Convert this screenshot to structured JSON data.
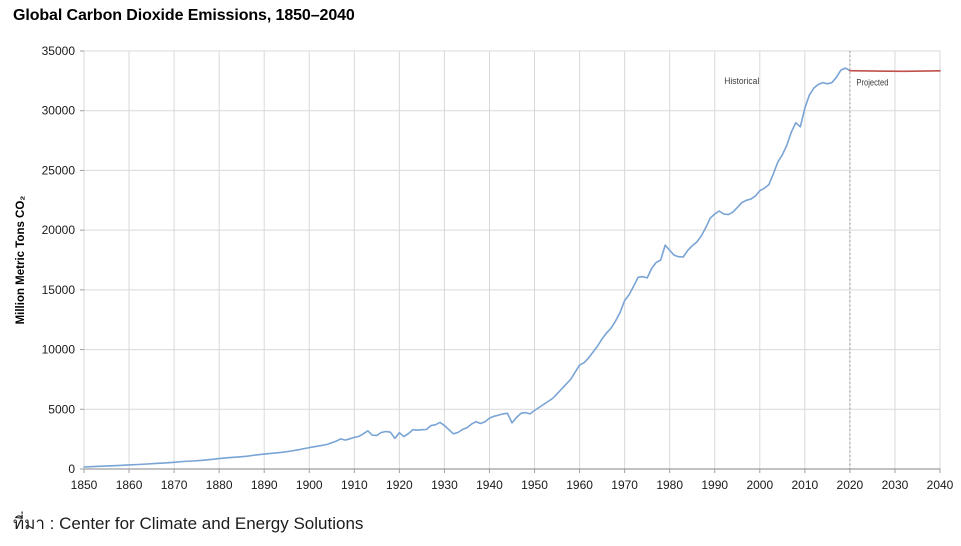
{
  "title": "Global Carbon Dioxide Emissions, 1850–2040",
  "source_note": "ที่มา : Center for Climate and Energy Solutions",
  "colors": {
    "historical_line": "#79a4d5",
    "projected_line": "#c0504d",
    "grid": "#d9d9d9",
    "axis": "#9e9e9e",
    "divider": "#8f8f8f",
    "tick_text": "#1a1a1a",
    "annotation_text": "#3c3c3c"
  },
  "chart_data": {
    "type": "line",
    "title": "Global Carbon Dioxide Emissions, 1850–2040",
    "xlabel": "",
    "ylabel": "Million Metric Tons CO₂",
    "xlim": [
      1850,
      2040
    ],
    "ylim": [
      0,
      35000
    ],
    "grid": true,
    "legend_position": "none",
    "x_ticks": [
      1850,
      1860,
      1870,
      1880,
      1890,
      1900,
      1910,
      1920,
      1930,
      1940,
      1950,
      1960,
      1970,
      1980,
      1990,
      2000,
      2010,
      2020,
      2030,
      2040
    ],
    "y_ticks": [
      0,
      5000,
      10000,
      15000,
      20000,
      25000,
      30000,
      35000
    ],
    "divider": {
      "x": 2020,
      "style": "dotted"
    },
    "annotations": [
      {
        "text": "Historical",
        "x": 1996,
        "y": 32500
      },
      {
        "text": "Projected",
        "x": 2025,
        "y": 32350
      }
    ],
    "series": [
      {
        "name": "Historical",
        "color": "#79a4d5",
        "points": [
          [
            1850,
            170
          ],
          [
            1852,
            200
          ],
          [
            1854,
            235
          ],
          [
            1856,
            270
          ],
          [
            1858,
            300
          ],
          [
            1860,
            340
          ],
          [
            1862,
            380
          ],
          [
            1864,
            420
          ],
          [
            1866,
            465
          ],
          [
            1868,
            510
          ],
          [
            1870,
            560
          ],
          [
            1872,
            630
          ],
          [
            1874,
            670
          ],
          [
            1876,
            720
          ],
          [
            1878,
            790
          ],
          [
            1880,
            870
          ],
          [
            1882,
            950
          ],
          [
            1884,
            1000
          ],
          [
            1886,
            1060
          ],
          [
            1888,
            1160
          ],
          [
            1890,
            1250
          ],
          [
            1892,
            1320
          ],
          [
            1894,
            1400
          ],
          [
            1896,
            1510
          ],
          [
            1898,
            1640
          ],
          [
            1900,
            1790
          ],
          [
            1902,
            1920
          ],
          [
            1904,
            2060
          ],
          [
            1906,
            2340
          ],
          [
            1907,
            2520
          ],
          [
            1908,
            2420
          ],
          [
            1909,
            2530
          ],
          [
            1910,
            2650
          ],
          [
            1911,
            2730
          ],
          [
            1912,
            2950
          ],
          [
            1913,
            3200
          ],
          [
            1914,
            2830
          ],
          [
            1915,
            2810
          ],
          [
            1916,
            3060
          ],
          [
            1917,
            3140
          ],
          [
            1918,
            3080
          ],
          [
            1919,
            2560
          ],
          [
            1920,
            3040
          ],
          [
            1921,
            2710
          ],
          [
            1922,
            2960
          ],
          [
            1923,
            3290
          ],
          [
            1924,
            3250
          ],
          [
            1925,
            3290
          ],
          [
            1926,
            3310
          ],
          [
            1927,
            3630
          ],
          [
            1928,
            3700
          ],
          [
            1929,
            3900
          ],
          [
            1930,
            3650
          ],
          [
            1931,
            3290
          ],
          [
            1932,
            2950
          ],
          [
            1933,
            3060
          ],
          [
            1934,
            3310
          ],
          [
            1935,
            3460
          ],
          [
            1936,
            3760
          ],
          [
            1937,
            3960
          ],
          [
            1938,
            3810
          ],
          [
            1939,
            3960
          ],
          [
            1940,
            4260
          ],
          [
            1941,
            4410
          ],
          [
            1942,
            4510
          ],
          [
            1943,
            4610
          ],
          [
            1944,
            4660
          ],
          [
            1945,
            3860
          ],
          [
            1946,
            4310
          ],
          [
            1947,
            4660
          ],
          [
            1948,
            4720
          ],
          [
            1949,
            4610
          ],
          [
            1950,
            4900
          ],
          [
            1951,
            5150
          ],
          [
            1952,
            5400
          ],
          [
            1953,
            5650
          ],
          [
            1954,
            5900
          ],
          [
            1955,
            6300
          ],
          [
            1956,
            6700
          ],
          [
            1957,
            7100
          ],
          [
            1958,
            7500
          ],
          [
            1959,
            8100
          ],
          [
            1960,
            8700
          ],
          [
            1961,
            8900
          ],
          [
            1962,
            9300
          ],
          [
            1963,
            9800
          ],
          [
            1964,
            10300
          ],
          [
            1965,
            10900
          ],
          [
            1966,
            11400
          ],
          [
            1967,
            11800
          ],
          [
            1968,
            12400
          ],
          [
            1969,
            13100
          ],
          [
            1970,
            14100
          ],
          [
            1971,
            14600
          ],
          [
            1972,
            15300
          ],
          [
            1973,
            16050
          ],
          [
            1974,
            16100
          ],
          [
            1975,
            16000
          ],
          [
            1976,
            16800
          ],
          [
            1977,
            17300
          ],
          [
            1978,
            17500
          ],
          [
            1979,
            18750
          ],
          [
            1980,
            18300
          ],
          [
            1981,
            17900
          ],
          [
            1982,
            17780
          ],
          [
            1983,
            17750
          ],
          [
            1984,
            18300
          ],
          [
            1985,
            18700
          ],
          [
            1986,
            19000
          ],
          [
            1987,
            19500
          ],
          [
            1988,
            20200
          ],
          [
            1989,
            21000
          ],
          [
            1990,
            21350
          ],
          [
            1991,
            21600
          ],
          [
            1992,
            21350
          ],
          [
            1993,
            21300
          ],
          [
            1994,
            21500
          ],
          [
            1995,
            21900
          ],
          [
            1996,
            22300
          ],
          [
            1997,
            22500
          ],
          [
            1998,
            22600
          ],
          [
            1999,
            22850
          ],
          [
            2000,
            23300
          ],
          [
            2001,
            23500
          ],
          [
            2002,
            23800
          ],
          [
            2003,
            24700
          ],
          [
            2004,
            25700
          ],
          [
            2005,
            26300
          ],
          [
            2006,
            27100
          ],
          [
            2007,
            28200
          ],
          [
            2008,
            29000
          ],
          [
            2009,
            28650
          ],
          [
            2010,
            30200
          ],
          [
            2011,
            31300
          ],
          [
            2012,
            31900
          ],
          [
            2013,
            32200
          ],
          [
            2014,
            32350
          ],
          [
            2015,
            32250
          ],
          [
            2016,
            32350
          ],
          [
            2017,
            32800
          ],
          [
            2018,
            33400
          ],
          [
            2019,
            33570
          ],
          [
            2020,
            33350
          ]
        ]
      },
      {
        "name": "Projected",
        "color": "#c0504d",
        "points": [
          [
            2020,
            33350
          ],
          [
            2024,
            33330
          ],
          [
            2028,
            33310
          ],
          [
            2032,
            33300
          ],
          [
            2036,
            33320
          ],
          [
            2040,
            33340
          ]
        ]
      }
    ]
  }
}
